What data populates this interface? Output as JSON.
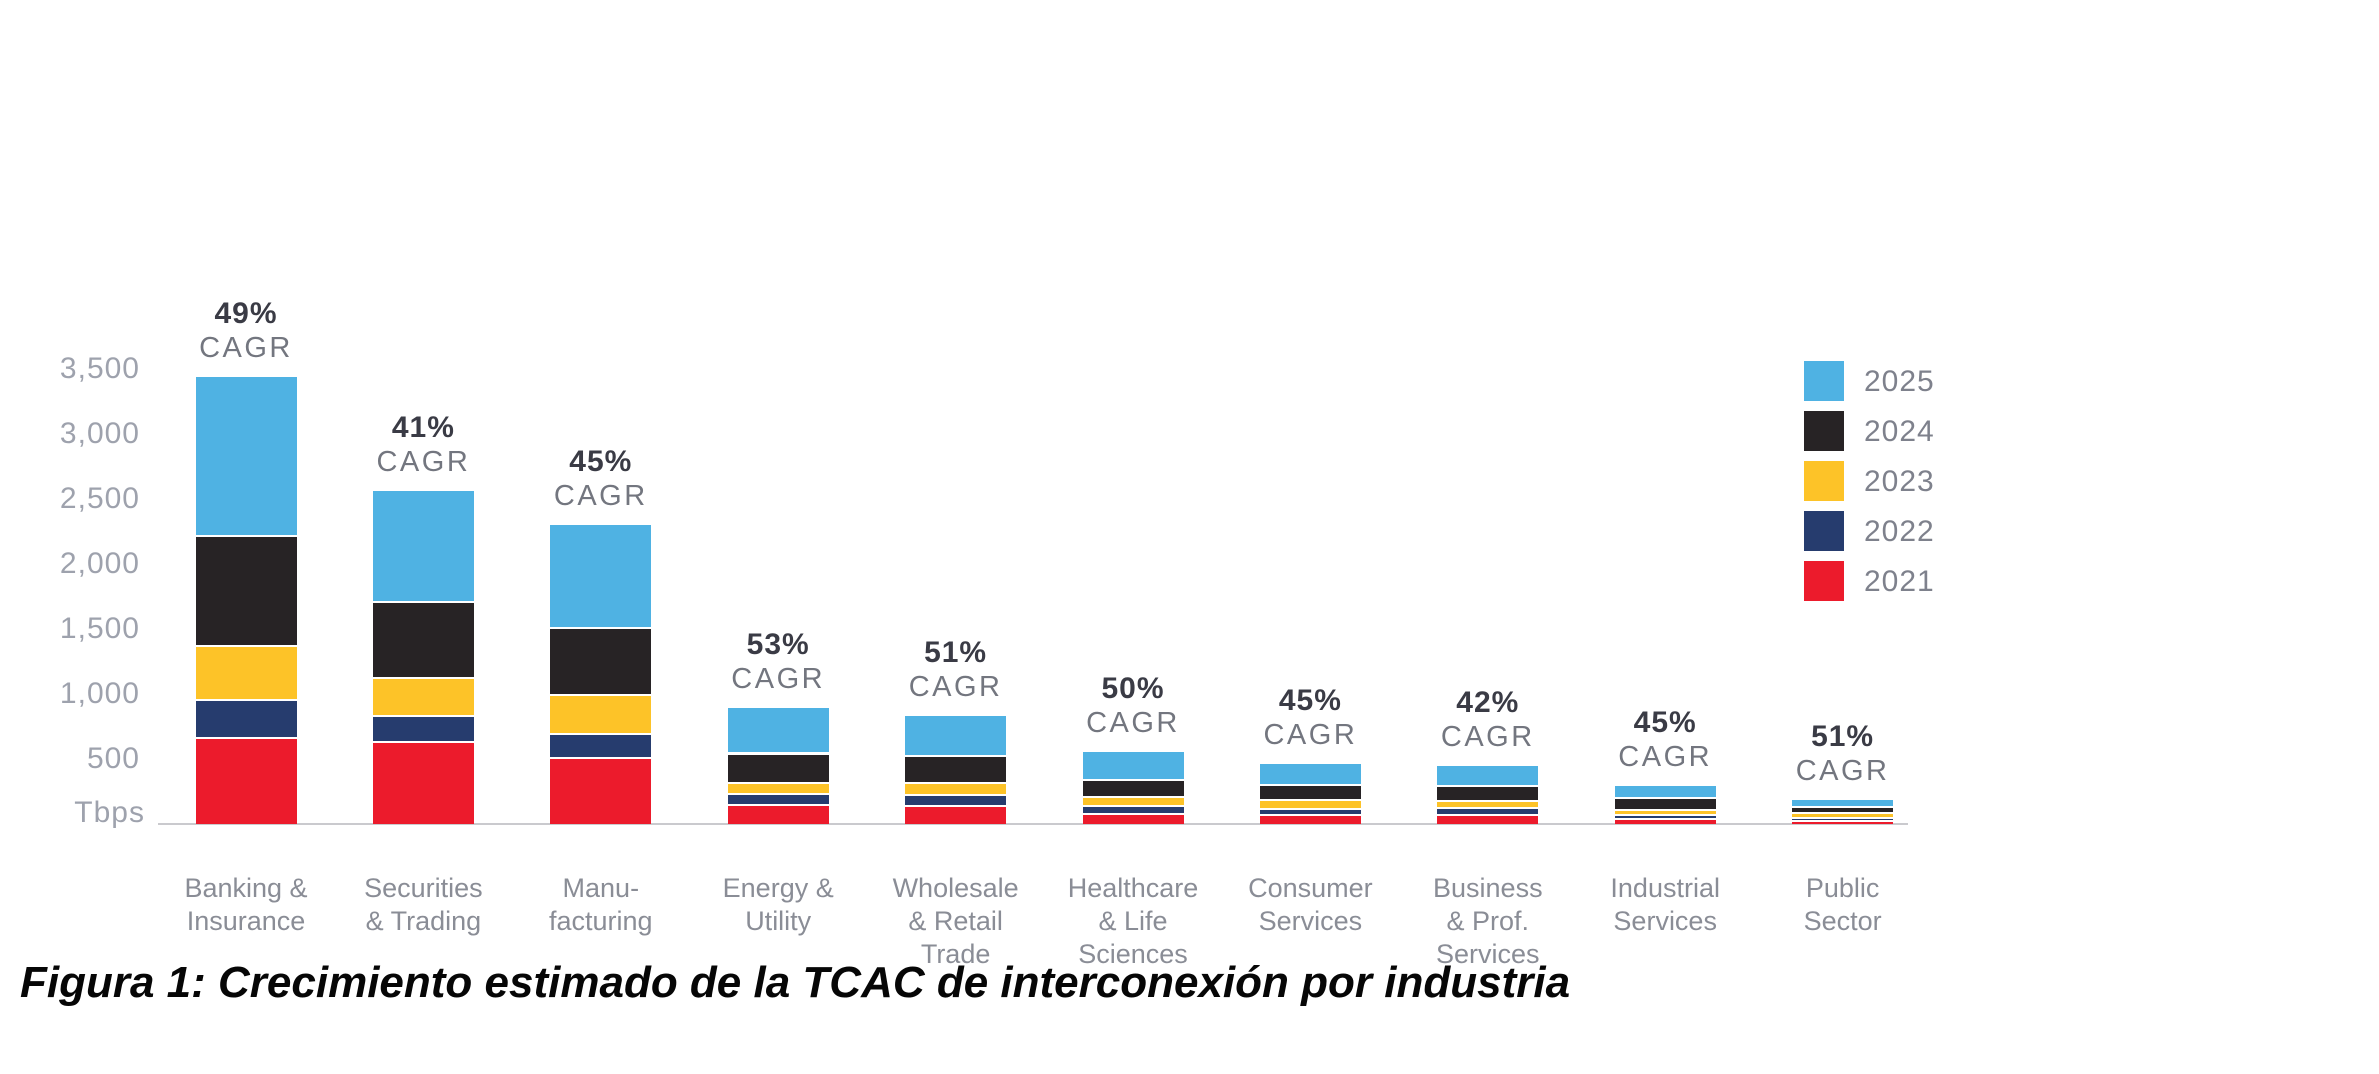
{
  "figure": {
    "caption": "Figura 1: Crecimiento estimado de la TCAC de interconexión por industria"
  },
  "chart_data": {
    "type": "bar",
    "stacked": true,
    "title": "",
    "xlabel": "",
    "ylabel": "Tbps",
    "unit": "Tbps",
    "ylim": [
      0,
      3500
    ],
    "grid": false,
    "ytick_values": [
      3500,
      3000,
      2500,
      2000,
      1500,
      1000,
      500
    ],
    "ytick_labels": [
      "3,500",
      "3,000",
      "2,500",
      "2,000",
      "1,500",
      "1,000",
      "500"
    ],
    "legend_position": "top-right",
    "legend_order": [
      "2025",
      "2024",
      "2023",
      "2022",
      "2021"
    ],
    "categories": [
      "Banking & Insurance",
      "Securities & Trading",
      "Manufacturing",
      "Energy & Utility",
      "Wholesale & Retail Trade",
      "Healthcare & Life Sciences",
      "Consumer Services",
      "Business & Prof. Services",
      "Industrial Services",
      "Public Sector"
    ],
    "category_label_lines": [
      [
        "Banking &",
        "Insurance"
      ],
      [
        "Securities",
        "& Trading"
      ],
      [
        "Manu-",
        "facturing"
      ],
      [
        "Energy &",
        "Utility"
      ],
      [
        "Wholesale",
        "& Retail",
        "Trade"
      ],
      [
        "Healthcare",
        "& Life",
        "Sciences"
      ],
      [
        "Consumer",
        "Services"
      ],
      [
        "Business",
        "& Prof.",
        "Services"
      ],
      [
        "Industrial",
        "Services"
      ],
      [
        "Public",
        "Sector"
      ]
    ],
    "cagr_word": "CAGR",
    "cagr_labels": [
      "49%",
      "41%",
      "45%",
      "53%",
      "51%",
      "50%",
      "45%",
      "42%",
      "45%",
      "51%"
    ],
    "series": [
      {
        "name": "2021",
        "color": "#EC1B2C",
        "values": [
          670,
          640,
          515,
          155,
          145,
          85,
          75,
          75,
          45,
          30
        ]
      },
      {
        "name": "2022",
        "color": "#263C6E",
        "values": [
          290,
          200,
          185,
          85,
          85,
          60,
          45,
          55,
          30,
          25
        ]
      },
      {
        "name": "2023",
        "color": "#FDC328",
        "values": [
          420,
          290,
          300,
          85,
          90,
          70,
          70,
          55,
          40,
          35
        ]
      },
      {
        "name": "2024",
        "color": "#272325",
        "values": [
          840,
          585,
          515,
          225,
          210,
          130,
          115,
          115,
          95,
          50
        ]
      },
      {
        "name": "2025",
        "color": "#4FB2E3",
        "values": [
          1220,
          845,
          785,
          340,
          300,
          210,
          155,
          145,
          85,
          45
        ]
      }
    ],
    "totals": [
      3440,
      2560,
      2300,
      890,
      830,
      555,
      460,
      445,
      295,
      185
    ]
  },
  "colors": {
    "background": "#FFFFFF",
    "axis_line": "#CACACE",
    "ytick_text": "#9EA2AD",
    "xtick_text": "#8A8D96",
    "cagr_pct_text": "#3A3B45",
    "cagr_word_text": "#73767F",
    "legend_text": "#7E818C"
  }
}
